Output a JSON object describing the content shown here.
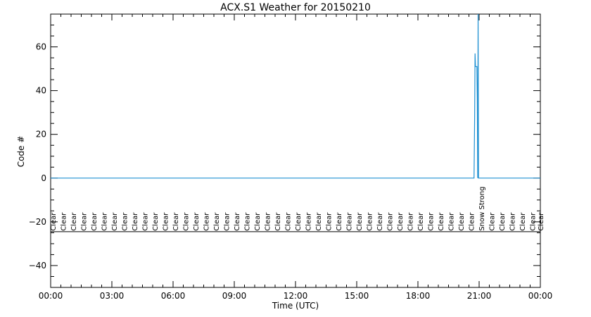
{
  "chart_data": {
    "type": "line",
    "title": "ACX.S1 Weather for 20150210",
    "xlabel": "Time (UTC)",
    "ylabel": "Code #",
    "xlim": [
      0,
      24
    ],
    "ylim": [
      -50,
      75
    ],
    "x_ticks": [
      {
        "v": 0,
        "label": "00:00"
      },
      {
        "v": 3,
        "label": "03:00"
      },
      {
        "v": 6,
        "label": "06:00"
      },
      {
        "v": 9,
        "label": "09:00"
      },
      {
        "v": 12,
        "label": "12:00"
      },
      {
        "v": 15,
        "label": "15:00"
      },
      {
        "v": 18,
        "label": "18:00"
      },
      {
        "v": 21,
        "label": "21:00"
      },
      {
        "v": 24,
        "label": "00:00"
      }
    ],
    "y_ticks": [
      {
        "v": -40,
        "label": "−40"
      },
      {
        "v": -20,
        "label": "−20"
      },
      {
        "v": 0,
        "label": "0"
      },
      {
        "v": 20,
        "label": "20"
      },
      {
        "v": 40,
        "label": "40"
      },
      {
        "v": 60,
        "label": "60"
      }
    ],
    "series": [
      {
        "color": "#1e90d2",
        "points": [
          [
            0,
            0
          ],
          [
            20.75,
            0
          ],
          [
            20.78,
            28
          ],
          [
            20.8,
            57
          ],
          [
            20.82,
            51
          ],
          [
            20.85,
            51
          ],
          [
            20.87,
            51
          ],
          [
            20.89,
            51
          ],
          [
            20.91,
            36
          ],
          [
            20.93,
            0
          ],
          [
            20.95,
            75
          ],
          [
            20.97,
            0
          ],
          [
            24,
            0
          ]
        ]
      }
    ],
    "reference_line_y": -24.5,
    "weather_labels": [
      {
        "x": 0.1,
        "text": "Clear"
      },
      {
        "x": 0.6,
        "text": "Clear"
      },
      {
        "x": 1.1,
        "text": "Clear"
      },
      {
        "x": 1.6,
        "text": "Clear"
      },
      {
        "x": 2.1,
        "text": "Clear"
      },
      {
        "x": 2.6,
        "text": "Clear"
      },
      {
        "x": 3.1,
        "text": "Clear"
      },
      {
        "x": 3.6,
        "text": "Clear"
      },
      {
        "x": 4.1,
        "text": "Clear"
      },
      {
        "x": 4.6,
        "text": "Clear"
      },
      {
        "x": 5.1,
        "text": "Clear"
      },
      {
        "x": 5.6,
        "text": "Clear"
      },
      {
        "x": 6.1,
        "text": "Clear"
      },
      {
        "x": 6.6,
        "text": "Clear"
      },
      {
        "x": 7.1,
        "text": "Clear"
      },
      {
        "x": 7.6,
        "text": "Clear"
      },
      {
        "x": 8.1,
        "text": "Clear"
      },
      {
        "x": 8.6,
        "text": "Clear"
      },
      {
        "x": 9.1,
        "text": "Clear"
      },
      {
        "x": 9.6,
        "text": "Clear"
      },
      {
        "x": 10.1,
        "text": "Clear"
      },
      {
        "x": 10.6,
        "text": "Clear"
      },
      {
        "x": 11.1,
        "text": "Clear"
      },
      {
        "x": 11.6,
        "text": "Clear"
      },
      {
        "x": 12.1,
        "text": "Clear"
      },
      {
        "x": 12.6,
        "text": "Clear"
      },
      {
        "x": 13.1,
        "text": "Clear"
      },
      {
        "x": 13.6,
        "text": "Clear"
      },
      {
        "x": 14.1,
        "text": "Clear"
      },
      {
        "x": 14.6,
        "text": "Clear"
      },
      {
        "x": 15.1,
        "text": "Clear"
      },
      {
        "x": 15.6,
        "text": "Clear"
      },
      {
        "x": 16.1,
        "text": "Clear"
      },
      {
        "x": 16.6,
        "text": "Clear"
      },
      {
        "x": 17.1,
        "text": "Clear"
      },
      {
        "x": 17.6,
        "text": "Clear"
      },
      {
        "x": 18.1,
        "text": "Clear"
      },
      {
        "x": 18.6,
        "text": "Clear"
      },
      {
        "x": 19.1,
        "text": "Clear"
      },
      {
        "x": 19.6,
        "text": "Clear"
      },
      {
        "x": 20.1,
        "text": "Clear"
      },
      {
        "x": 20.6,
        "text": "Clear"
      },
      {
        "x": 21.1,
        "text": "Snow Strong"
      },
      {
        "x": 21.6,
        "text": "Clear"
      },
      {
        "x": 22.1,
        "text": "Clear"
      },
      {
        "x": 22.6,
        "text": "Clear"
      },
      {
        "x": 23.1,
        "text": "Clear"
      },
      {
        "x": 23.6,
        "text": "Clear"
      },
      {
        "x": 24.0,
        "text": "Clear"
      }
    ],
    "grid": false
  }
}
